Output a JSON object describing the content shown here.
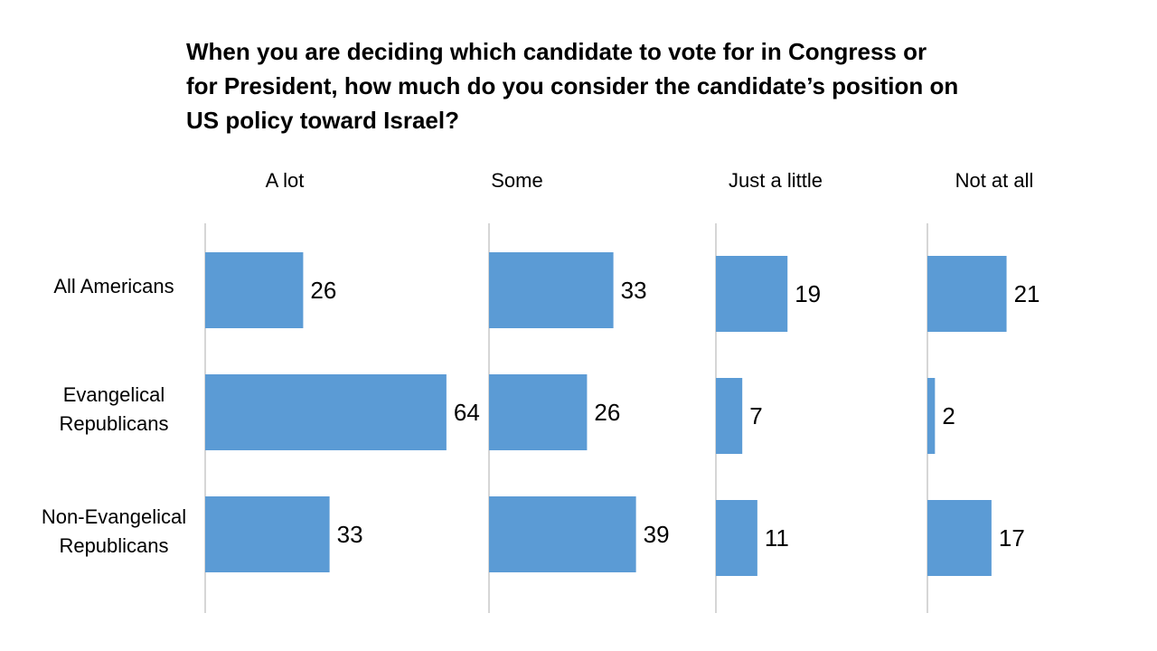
{
  "title_lines": [
    "When you are deciding which candidate to vote for in Congress or",
    "for President, how much do you consider the candidate’s position on",
    "US policy toward Israel?"
  ],
  "colors": {
    "bar": "#5b9bd5",
    "axis": "#bfbfbf",
    "text": "#000000"
  },
  "chart_data": {
    "type": "bar",
    "orientation": "horizontal",
    "title": "When you are deciding which candidate to vote for in Congress or for President, how much do you consider the candidate’s position on US policy toward Israel?",
    "rows": [
      {
        "label_lines": [
          "All Americans"
        ]
      },
      {
        "label_lines": [
          "Evangelical",
          "Republicans"
        ]
      },
      {
        "label_lines": [
          "Non-Evangelical",
          "Republicans"
        ]
      }
    ],
    "series": [
      {
        "name": "A lot",
        "values": [
          26,
          64,
          33
        ]
      },
      {
        "name": "Some",
        "values": [
          33,
          26,
          39
        ]
      },
      {
        "name": "Just a little",
        "values": [
          19,
          7,
          11
        ]
      },
      {
        "name": "Not at all",
        "values": [
          21,
          2,
          17
        ]
      }
    ],
    "units": "percent",
    "xlim": [
      0,
      64
    ]
  }
}
